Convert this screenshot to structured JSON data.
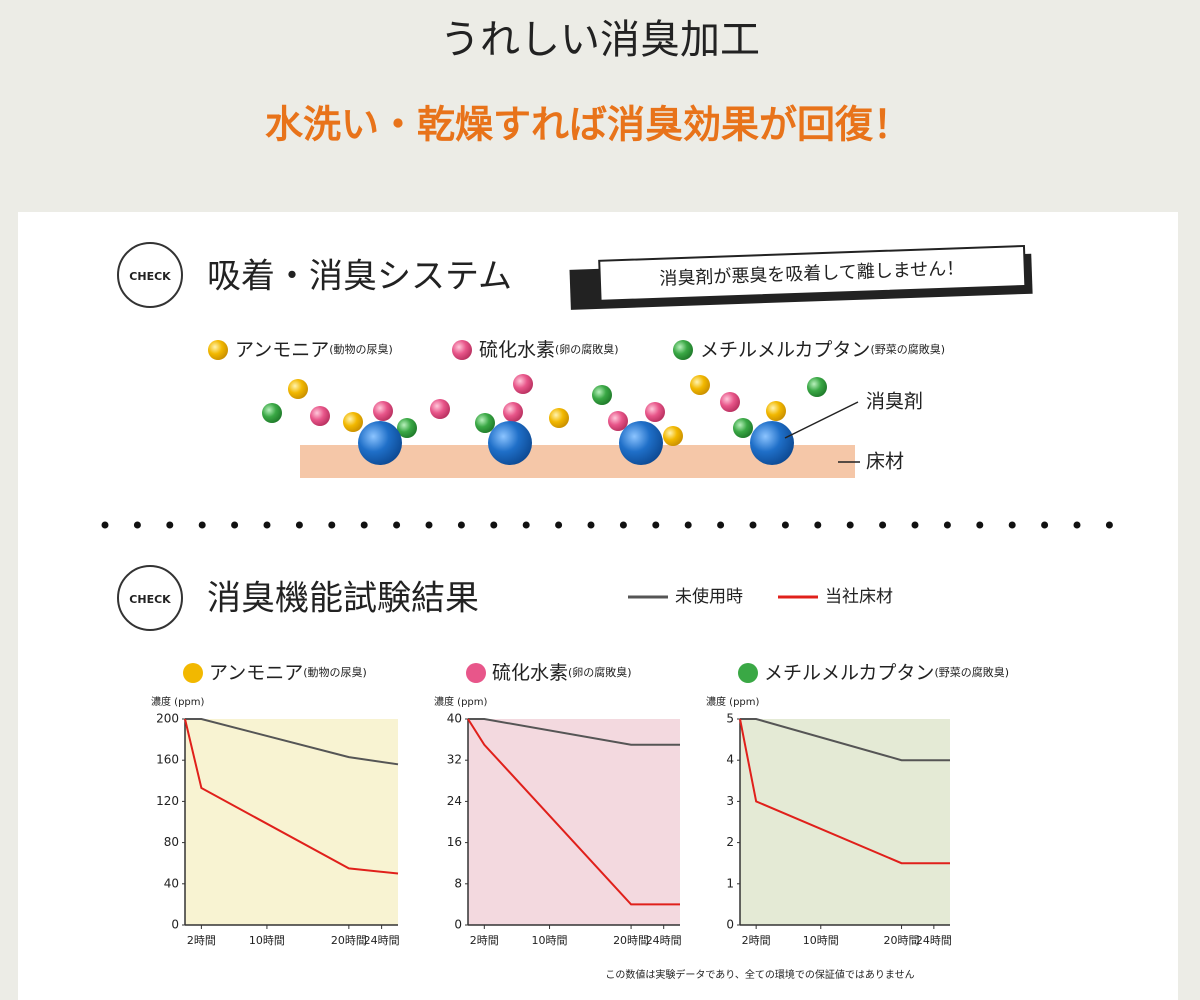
{
  "header": {
    "title": "うれしい消臭加工",
    "subtitle": "水洗い・乾燥すれば消臭効果が回復！"
  },
  "badge": "CHECK",
  "system": {
    "title": "吸着・消臭システム",
    "banner": "消臭剤が悪臭を吸着して離しません！",
    "gases": [
      {
        "name": "アンモニア",
        "note": "(動物の尿臭)"
      },
      {
        "name": "硫化水素",
        "note": "(卵の腐敗臭)"
      },
      {
        "name": "メチルメルカプタン",
        "note": "(野菜の腐敗臭)"
      }
    ],
    "deodorant_label": "消臭剤",
    "floor_label": "床材"
  },
  "results_title": "消臭機能試験結果",
  "footnote": "この数値は実験データであり、全ての環境での保証値ではありません",
  "chart_data": [
    {
      "type": "line",
      "title": "アンモニア",
      "subtitle": "(動物の尿臭)",
      "dot_color": "#f2b800",
      "background": "#f8f3d2",
      "y_label": "濃度 (ppm)",
      "x": [
        0,
        2,
        20,
        26
      ],
      "xlim": [
        0,
        26
      ],
      "xticks": [
        {
          "value": 2,
          "label": "2時間"
        },
        {
          "value": 10,
          "label": "10時間"
        },
        {
          "value": 20,
          "label": "20時間"
        },
        {
          "value": 24,
          "label": "24時間"
        }
      ],
      "ylim": [
        0,
        200
      ],
      "yticks": [
        0,
        40,
        80,
        120,
        160,
        200
      ],
      "series": [
        {
          "name": "未使用時",
          "color": "#555555",
          "values": [
            200,
            200,
            163,
            156
          ]
        },
        {
          "name": "当社床材",
          "color": "#e0201b",
          "values": [
            200,
            133,
            55,
            50
          ]
        }
      ]
    },
    {
      "type": "line",
      "title": "硫化水素",
      "subtitle": "(卵の腐敗臭)",
      "dot_color": "#e8568a",
      "background": "#f3d9df",
      "y_label": "濃度 (ppm)",
      "x": [
        0,
        2,
        20,
        26
      ],
      "xlim": [
        0,
        26
      ],
      "xticks": [
        {
          "value": 2,
          "label": "2時間"
        },
        {
          "value": 10,
          "label": "10時間"
        },
        {
          "value": 20,
          "label": "20時間"
        },
        {
          "value": 24,
          "label": "24時間"
        }
      ],
      "ylim": [
        0,
        40
      ],
      "yticks": [
        0,
        8,
        16,
        24,
        32,
        40
      ],
      "series": [
        {
          "color": "#555555",
          "values": [
            40,
            40,
            35,
            35
          ]
        },
        {
          "color": "#e0201b",
          "values": [
            40,
            35,
            4,
            4
          ]
        }
      ]
    },
    {
      "type": "line",
      "title": "メチルメルカプタン",
      "subtitle": "(野菜の腐敗臭)",
      "dot_color": "#3aa845",
      "background": "#e4ead5",
      "y_label": "濃度 (ppm)",
      "x": [
        0,
        2,
        20,
        26
      ],
      "xlim": [
        0,
        26
      ],
      "xticks": [
        {
          "value": 2,
          "label": "2時間"
        },
        {
          "value": 10,
          "label": "10時間"
        },
        {
          "value": 20,
          "label": "20時間"
        },
        {
          "value": 24,
          "label": "24時間"
        }
      ],
      "ylim": [
        0,
        5
      ],
      "yticks": [
        0,
        1,
        2,
        3,
        4,
        5
      ],
      "series": [
        {
          "color": "#555555",
          "values": [
            5,
            5,
            4,
            4
          ]
        },
        {
          "color": "#e0201b",
          "values": [
            5,
            3,
            1.5,
            1.5
          ]
        }
      ]
    }
  ]
}
